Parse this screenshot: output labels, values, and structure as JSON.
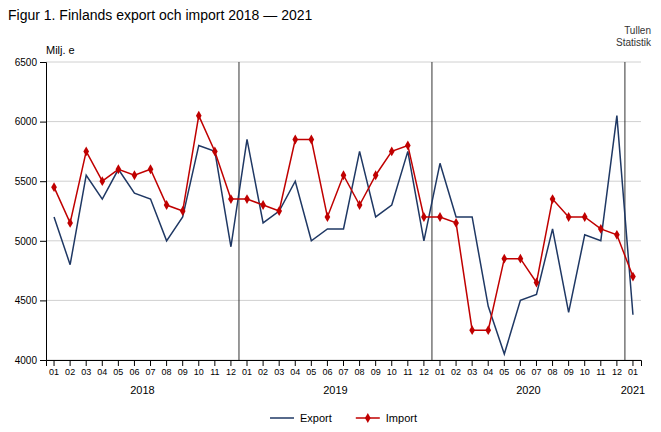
{
  "chart_data": {
    "type": "line",
    "title": "Figur 1. Finlands export och import 2018 — 2021",
    "ylabel": "Milj. e",
    "watermark": [
      "Tullen",
      "Statistik"
    ],
    "annotations": [
      "2018",
      "2019",
      "2020",
      "2021"
    ],
    "categories": [
      "01",
      "02",
      "03",
      "04",
      "05",
      "06",
      "07",
      "08",
      "09",
      "10",
      "11",
      "12",
      "01",
      "02",
      "03",
      "04",
      "05",
      "06",
      "07",
      "08",
      "09",
      "10",
      "11",
      "12",
      "01",
      "02",
      "03",
      "04",
      "05",
      "06",
      "07",
      "08",
      "09",
      "10",
      "11",
      "12",
      "01"
    ],
    "series": [
      {
        "name": "Export",
        "color": "#1f3864",
        "marker": "none",
        "values": [
          5200,
          4800,
          5550,
          5350,
          5600,
          5400,
          5350,
          5000,
          5200,
          5800,
          5750,
          4950,
          5850,
          5150,
          5250,
          5500,
          5000,
          5100,
          5100,
          5750,
          5200,
          5300,
          5750,
          5000,
          5650,
          5200,
          5200,
          4450,
          4050,
          4500,
          4550,
          5100,
          4400,
          5050,
          5000,
          6050,
          4380
        ]
      },
      {
        "name": "Import",
        "color": "#c00000",
        "marker": "diamond",
        "values": [
          5450,
          5150,
          5750,
          5500,
          5600,
          5550,
          5600,
          5300,
          5250,
          6050,
          5750,
          5350,
          5350,
          5300,
          5250,
          5850,
          5850,
          5200,
          5550,
          5300,
          5550,
          5750,
          5800,
          5200,
          5200,
          5150,
          4250,
          4250,
          4850,
          4850,
          4650,
          5350,
          5200,
          5200,
          5100,
          5050,
          4700
        ]
      }
    ],
    "ylim": [
      4000,
      6500
    ],
    "yticks": [
      4000,
      4500,
      5000,
      5500,
      6000,
      6500
    ],
    "grid": true,
    "legend": "bottom"
  }
}
